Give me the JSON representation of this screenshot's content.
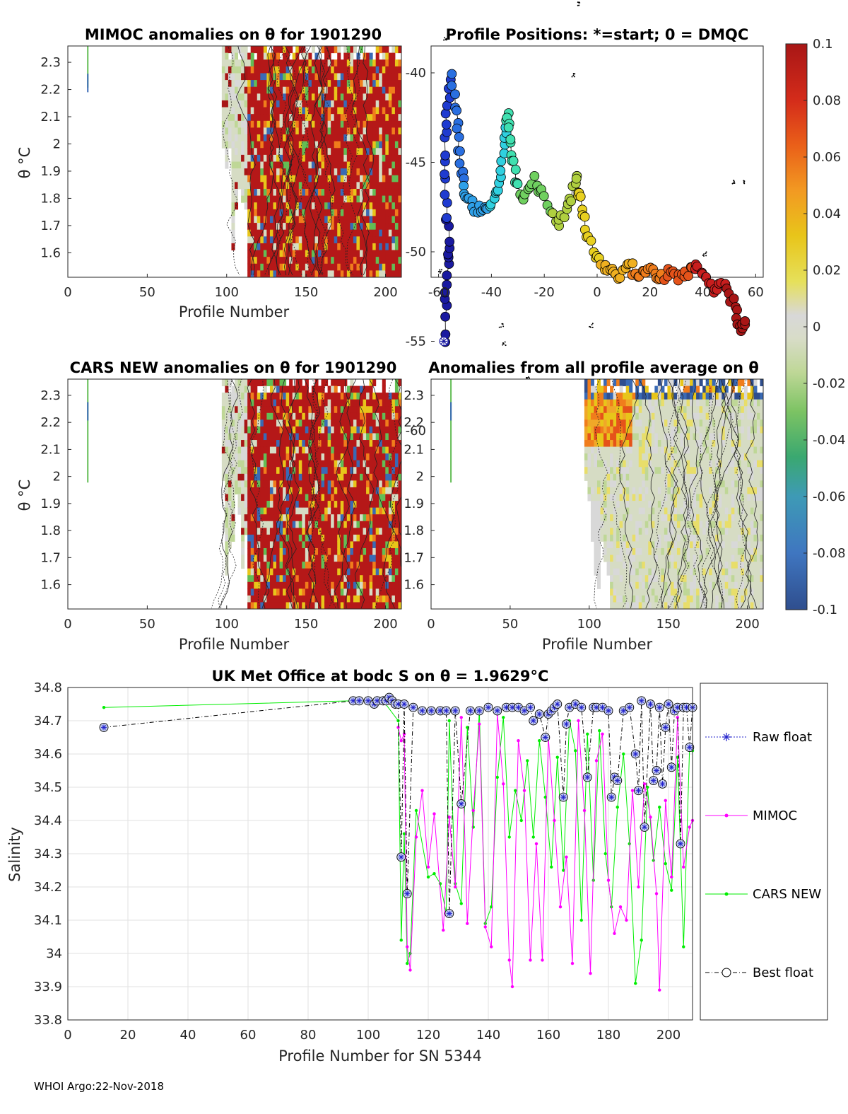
{
  "footer": "WHOI Argo:22-Nov-2018",
  "panels": {
    "mimoc": {
      "title": "MIMOC anomalies on θ  for 1901290",
      "xlabel": "Profile Number",
      "ylabel": "θ °C",
      "xticks": [
        "0",
        "50",
        "100",
        "150",
        "200"
      ],
      "yticks": [
        "2.3",
        "2.2",
        "2.1",
        "2",
        "1.9",
        "1.8",
        "1.7",
        "1.6"
      ]
    },
    "positions": {
      "title": "Profile Positions: *=start; 0 = DMQC",
      "xticks": [
        "-60",
        "-40",
        "-20",
        "0",
        "20",
        "40",
        "60"
      ],
      "yticks": [
        "-40",
        "-45",
        "-50",
        "-55",
        "-60"
      ]
    },
    "cars": {
      "title": "CARS NEW anomalies on θ for 1901290",
      "xlabel": "Profile Number",
      "ylabel": "θ °C",
      "xticks": [
        "0",
        "50",
        "100",
        "150",
        "200"
      ],
      "yticks": [
        "2.3",
        "2.2",
        "2.1",
        "2",
        "1.9",
        "1.8",
        "1.7",
        "1.6"
      ]
    },
    "allavg": {
      "title": "Anomalies from all profile average on θ",
      "xlabel": "Profile Number",
      "xticks": [
        "0",
        "50",
        "100",
        "150",
        "200"
      ],
      "yticks": [
        "2.3",
        "2.2",
        "2.1",
        "2",
        "1.9",
        "1.8",
        "1.7",
        "1.6"
      ]
    }
  },
  "colorbar": {
    "ticks": [
      "0.1",
      "0.08",
      "0.06",
      "0.04",
      "0.02",
      "0",
      "-0.02",
      "-0.04",
      "-0.06",
      "-0.08",
      "-0.1"
    ],
    "colors": [
      "#2f4e8e",
      "#3a6ab5",
      "#4a8fc9",
      "#3aa870",
      "#63bd55",
      "#a8cf7c",
      "#d6e0b4",
      "#d8d8d8",
      "#e8de6a",
      "#e8c51a",
      "#f0a828",
      "#f07d1c",
      "#e5531a",
      "#c81e1e",
      "#a81616"
    ]
  },
  "chart_data": {
    "type": "line",
    "title": "UK Met Office at bodc S on θ = 1.9629°C",
    "xlabel": "Profile Number for SN 5344",
    "ylabel": "Salinity",
    "xlim": [
      0,
      208
    ],
    "ylim": [
      33.8,
      34.8
    ],
    "xticks": [
      "0",
      "20",
      "40",
      "60",
      "80",
      "100",
      "120",
      "140",
      "160",
      "180",
      "200"
    ],
    "yticks": [
      "34.8",
      "34.7",
      "34.6",
      "34.5",
      "34.4",
      "34.3",
      "34.2",
      "34.1",
      "34",
      "33.9",
      "33.8"
    ],
    "legend": [
      "Raw float",
      "MIMOC",
      "CARS NEW",
      "Best float"
    ],
    "series": [
      {
        "name": "Best float",
        "x": [
          12,
          95,
          97,
          100,
          102,
          103,
          105,
          106,
          107,
          108,
          109,
          110,
          111,
          112,
          113,
          115,
          118,
          121,
          124,
          126,
          127,
          129,
          131,
          134,
          137,
          140,
          143,
          146,
          148,
          150,
          152,
          154,
          155,
          157,
          159,
          160,
          161,
          162,
          163,
          165,
          166,
          167,
          169,
          171,
          173,
          175,
          176,
          178,
          180,
          181,
          182,
          183,
          185,
          187,
          189,
          190,
          191,
          192,
          194,
          195,
          196,
          197,
          198,
          199,
          200,
          201,
          202,
          203,
          204,
          205,
          206,
          207,
          208
        ],
        "y": [
          34.68,
          34.76,
          34.76,
          34.76,
          34.75,
          34.76,
          34.76,
          34.76,
          34.77,
          34.76,
          34.75,
          34.75,
          34.29,
          34.75,
          34.18,
          34.74,
          34.73,
          34.73,
          34.73,
          34.73,
          34.12,
          34.73,
          34.45,
          34.73,
          34.73,
          34.74,
          34.73,
          34.74,
          34.74,
          34.74,
          34.73,
          34.74,
          34.7,
          34.72,
          34.65,
          34.72,
          34.73,
          34.74,
          34.75,
          34.47,
          34.69,
          34.74,
          34.75,
          34.74,
          34.53,
          34.74,
          34.74,
          34.74,
          34.73,
          34.47,
          34.53,
          34.52,
          34.73,
          34.74,
          34.6,
          34.49,
          34.76,
          34.38,
          34.75,
          34.52,
          34.55,
          34.74,
          34.51,
          34.68,
          34.75,
          34.56,
          34.73,
          34.74,
          34.33,
          34.74,
          34.74,
          34.62,
          34.74
        ]
      },
      {
        "name": "MIMOC",
        "x": [
          110,
          111,
          112,
          113,
          114,
          116,
          118,
          120,
          122,
          125,
          127,
          129,
          131,
          133,
          135,
          137,
          139,
          141,
          143,
          145,
          147,
          148,
          150,
          152,
          154,
          156,
          158,
          160,
          162,
          164,
          166,
          168,
          170,
          172,
          174,
          176,
          178,
          180,
          182,
          184,
          186,
          188,
          190,
          192,
          194,
          196,
          197,
          199,
          201,
          203,
          205,
          207,
          208
        ],
        "y": [
          34.68,
          34.64,
          34.66,
          34.02,
          33.95,
          34.35,
          34.49,
          34.26,
          34.42,
          34.07,
          34.41,
          34.2,
          34.71,
          34.09,
          34.43,
          34.69,
          34.08,
          34.02,
          34.72,
          34.51,
          33.98,
          33.9,
          34.64,
          34.49,
          33.98,
          34.33,
          33.98,
          34.65,
          34.4,
          34.14,
          34.29,
          33.97,
          34.7,
          34.43,
          33.94,
          34.58,
          34.66,
          34.22,
          34.06,
          34.14,
          34.1,
          34.49,
          34.2,
          34.51,
          34.41,
          34.18,
          33.89,
          34.46,
          34.23,
          34.71,
          34.26,
          34.38,
          34.4
        ]
      },
      {
        "name": "CARS NEW",
        "x": [
          12,
          95,
          100,
          105,
          110,
          111,
          112,
          113,
          114,
          116,
          120,
          122,
          124,
          126,
          127,
          129,
          131,
          133,
          135,
          137,
          139,
          141,
          143,
          145,
          147,
          149,
          151,
          153,
          155,
          157,
          159,
          161,
          163,
          165,
          167,
          169,
          171,
          173,
          175,
          177,
          179,
          181,
          183,
          185,
          187,
          189,
          191,
          193,
          195,
          197,
          199,
          201,
          203,
          205,
          207,
          208
        ],
        "y": [
          34.74,
          34.76,
          34.76,
          34.76,
          34.7,
          34.04,
          34.36,
          33.97,
          34.0,
          34.43,
          34.23,
          34.24,
          34.21,
          34.12,
          34.7,
          34.21,
          34.15,
          34.68,
          34.38,
          34.73,
          34.09,
          34.14,
          34.53,
          34.71,
          34.35,
          34.49,
          34.4,
          34.58,
          34.35,
          34.64,
          34.47,
          34.26,
          34.59,
          34.25,
          34.7,
          34.61,
          34.1,
          34.66,
          34.22,
          34.67,
          34.3,
          34.14,
          34.44,
          34.6,
          34.33,
          33.91,
          34.04,
          34.5,
          34.28,
          34.44,
          34.27,
          34.19,
          34.59,
          34.02,
          34.62,
          34.61
        ]
      }
    ]
  }
}
